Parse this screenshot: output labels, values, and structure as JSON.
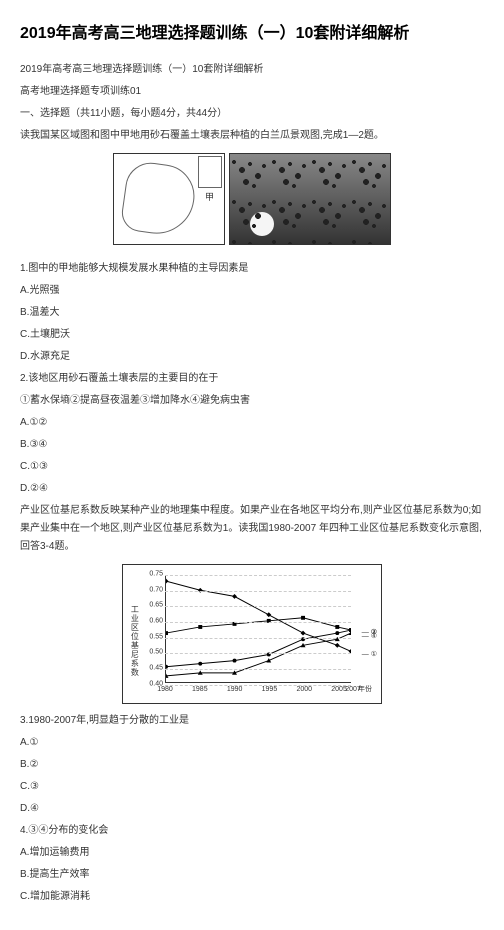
{
  "title": "2019年高考高三地理选择题训练（一）10套附详细解析",
  "subtitle": "2019年高考高三地理选择题训练（一）10套附详细解析",
  "section_header": "高考地理选择题专项训练01",
  "instruction_line": "一、选择题（共11小题，每小题4分，共44分）",
  "intro1": "读我国某区域图和图中甲地用砂石覆盖土壤表层种植的白兰瓜景观图,完成1—2题。",
  "q1": {
    "stem": "1.图中的甲地能够大规模发展水果种植的主导因素是",
    "opts": {
      "a": "A.光照强",
      "b": "B.温差大",
      "c": "C.土壤肥沃",
      "d": "D.水源充足"
    }
  },
  "q2": {
    "stem": "2.该地区用砂石覆盖土壤表层的主要目的在于",
    "choices_line": "①蓄水保墒②提高昼夜温差③增加降水④避免病虫害",
    "opts": {
      "a": "A.①②",
      "b": "B.③④",
      "c": "C.①③",
      "d": "D.②④"
    }
  },
  "intro2": "产业区位基尼系数反映某种产业的地理集中程度。如果产业在各地区平均分布,则产业区位基尼系数为0;如果产业集中在一个地区,则产业区位基尼系数为1。读我国1980-2007 年四种工业区位基尼系数变化示意图,回答3-4题。",
  "chart": {
    "ylabel": "工业区位基尼系数",
    "ylim": [
      0.4,
      0.75
    ],
    "ytick_step": 0.05,
    "yticks": [
      "0.75",
      "0.70",
      "0.65",
      "0.60",
      "0.55",
      "0.50",
      "0.45",
      "0.40"
    ],
    "xlim": [
      1980,
      2007
    ],
    "xticks": [
      "1980",
      "1985",
      "1990",
      "1995",
      "2000",
      "2005",
      "2007"
    ],
    "xlabel_suffix": "年份",
    "series": [
      {
        "label": "①",
        "marker": "diamond",
        "color": "#000000",
        "points": [
          [
            1980,
            0.73
          ],
          [
            1985,
            0.7
          ],
          [
            1990,
            0.68
          ],
          [
            1995,
            0.62
          ],
          [
            2000,
            0.56
          ],
          [
            2005,
            0.52
          ],
          [
            2007,
            0.5
          ]
        ]
      },
      {
        "label": "②",
        "marker": "square",
        "color": "#000000",
        "points": [
          [
            1980,
            0.56
          ],
          [
            1985,
            0.58
          ],
          [
            1990,
            0.59
          ],
          [
            1995,
            0.6
          ],
          [
            2000,
            0.61
          ],
          [
            2005,
            0.58
          ],
          [
            2007,
            0.57
          ]
        ]
      },
      {
        "label": "③",
        "marker": "circle",
        "color": "#000000",
        "points": [
          [
            1980,
            0.45
          ],
          [
            1985,
            0.46
          ],
          [
            1990,
            0.47
          ],
          [
            1995,
            0.49
          ],
          [
            2000,
            0.54
          ],
          [
            2005,
            0.56
          ],
          [
            2007,
            0.57
          ]
        ]
      },
      {
        "label": "④",
        "marker": "triangle",
        "color": "#000000",
        "points": [
          [
            1980,
            0.42
          ],
          [
            1985,
            0.43
          ],
          [
            1990,
            0.43
          ],
          [
            1995,
            0.47
          ],
          [
            2000,
            0.52
          ],
          [
            2005,
            0.54
          ],
          [
            2007,
            0.56
          ]
        ]
      }
    ],
    "grid_color": "#cccccc",
    "background_color": "#ffffff"
  },
  "q3": {
    "stem": "3.1980-2007年,明显趋于分散的工业是",
    "opts": {
      "a": "A.①",
      "b": "B.②",
      "c": "C.③",
      "d": "D.④"
    }
  },
  "q4": {
    "stem": "4.③④分布的变化会",
    "opts": {
      "a": "A.增加运输费用",
      "b": "B.提高生产效率",
      "c": "C.增加能源消耗"
    }
  }
}
